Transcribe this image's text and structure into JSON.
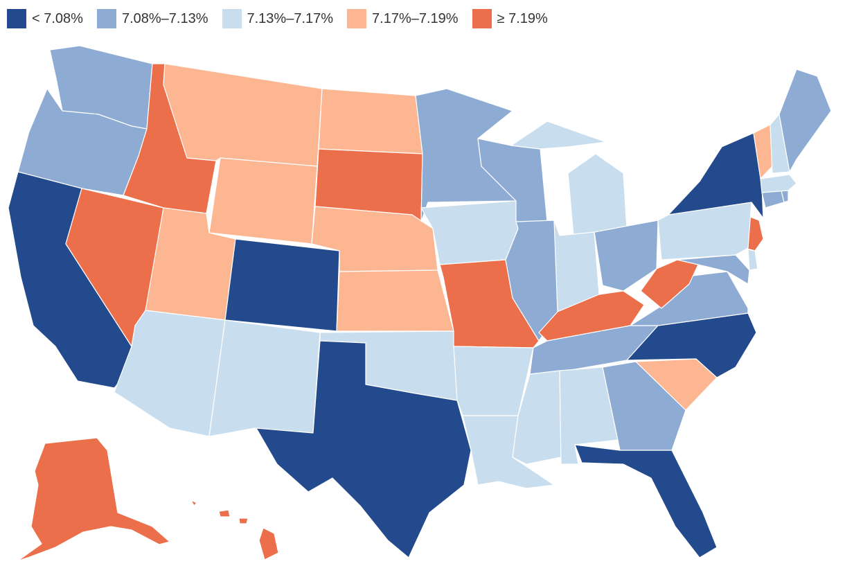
{
  "legend": {
    "items": [
      {
        "key": "c1",
        "label": "< 7.08%",
        "color": "#234a8c"
      },
      {
        "key": "c2",
        "label": "7.08%–7.13%",
        "color": "#8dabd3"
      },
      {
        "key": "c3",
        "label": "7.13%–7.17%",
        "color": "#c8ddee"
      },
      {
        "key": "c4",
        "label": "7.17%–7.19%",
        "color": "#fcb692"
      },
      {
        "key": "c5",
        "label": "≥ 7.19%",
        "color": "#ec6f4b"
      }
    ]
  },
  "states": [
    {
      "name": "WA",
      "class": "c2"
    },
    {
      "name": "OR",
      "class": "c2"
    },
    {
      "name": "CA",
      "class": "c1"
    },
    {
      "name": "NV",
      "class": "c5"
    },
    {
      "name": "ID",
      "class": "c5"
    },
    {
      "name": "MT",
      "class": "c4"
    },
    {
      "name": "WY",
      "class": "c4"
    },
    {
      "name": "UT",
      "class": "c4"
    },
    {
      "name": "AZ",
      "class": "c3"
    },
    {
      "name": "CO",
      "class": "c1"
    },
    {
      "name": "NM",
      "class": "c3"
    },
    {
      "name": "ND",
      "class": "c4"
    },
    {
      "name": "SD",
      "class": "c5"
    },
    {
      "name": "NE",
      "class": "c4"
    },
    {
      "name": "KS",
      "class": "c4"
    },
    {
      "name": "OK",
      "class": "c3"
    },
    {
      "name": "TX",
      "class": "c1"
    },
    {
      "name": "MN",
      "class": "c2"
    },
    {
      "name": "IA",
      "class": "c3"
    },
    {
      "name": "MO",
      "class": "c5"
    },
    {
      "name": "AR",
      "class": "c3"
    },
    {
      "name": "LA",
      "class": "c3"
    },
    {
      "name": "WI",
      "class": "c2"
    },
    {
      "name": "IL",
      "class": "c2"
    },
    {
      "name": "MI",
      "class": "c3"
    },
    {
      "name": "IN",
      "class": "c3"
    },
    {
      "name": "OH",
      "class": "c2"
    },
    {
      "name": "KY",
      "class": "c5"
    },
    {
      "name": "TN",
      "class": "c2"
    },
    {
      "name": "MS",
      "class": "c3"
    },
    {
      "name": "AL",
      "class": "c3"
    },
    {
      "name": "GA",
      "class": "c2"
    },
    {
      "name": "FL",
      "class": "c1"
    },
    {
      "name": "SC",
      "class": "c4"
    },
    {
      "name": "NC",
      "class": "c1"
    },
    {
      "name": "VA",
      "class": "c2"
    },
    {
      "name": "WV",
      "class": "c5"
    },
    {
      "name": "MD",
      "class": "c2"
    },
    {
      "name": "DE",
      "class": "c3"
    },
    {
      "name": "NJ",
      "class": "c5"
    },
    {
      "name": "PA",
      "class": "c3"
    },
    {
      "name": "NY",
      "class": "c1"
    },
    {
      "name": "CT",
      "class": "c2"
    },
    {
      "name": "RI",
      "class": "c2"
    },
    {
      "name": "MA",
      "class": "c3"
    },
    {
      "name": "VT",
      "class": "c4"
    },
    {
      "name": "NH",
      "class": "c3"
    },
    {
      "name": "ME",
      "class": "c2"
    },
    {
      "name": "AK",
      "class": "c5"
    },
    {
      "name": "HI",
      "class": "c5"
    }
  ]
}
